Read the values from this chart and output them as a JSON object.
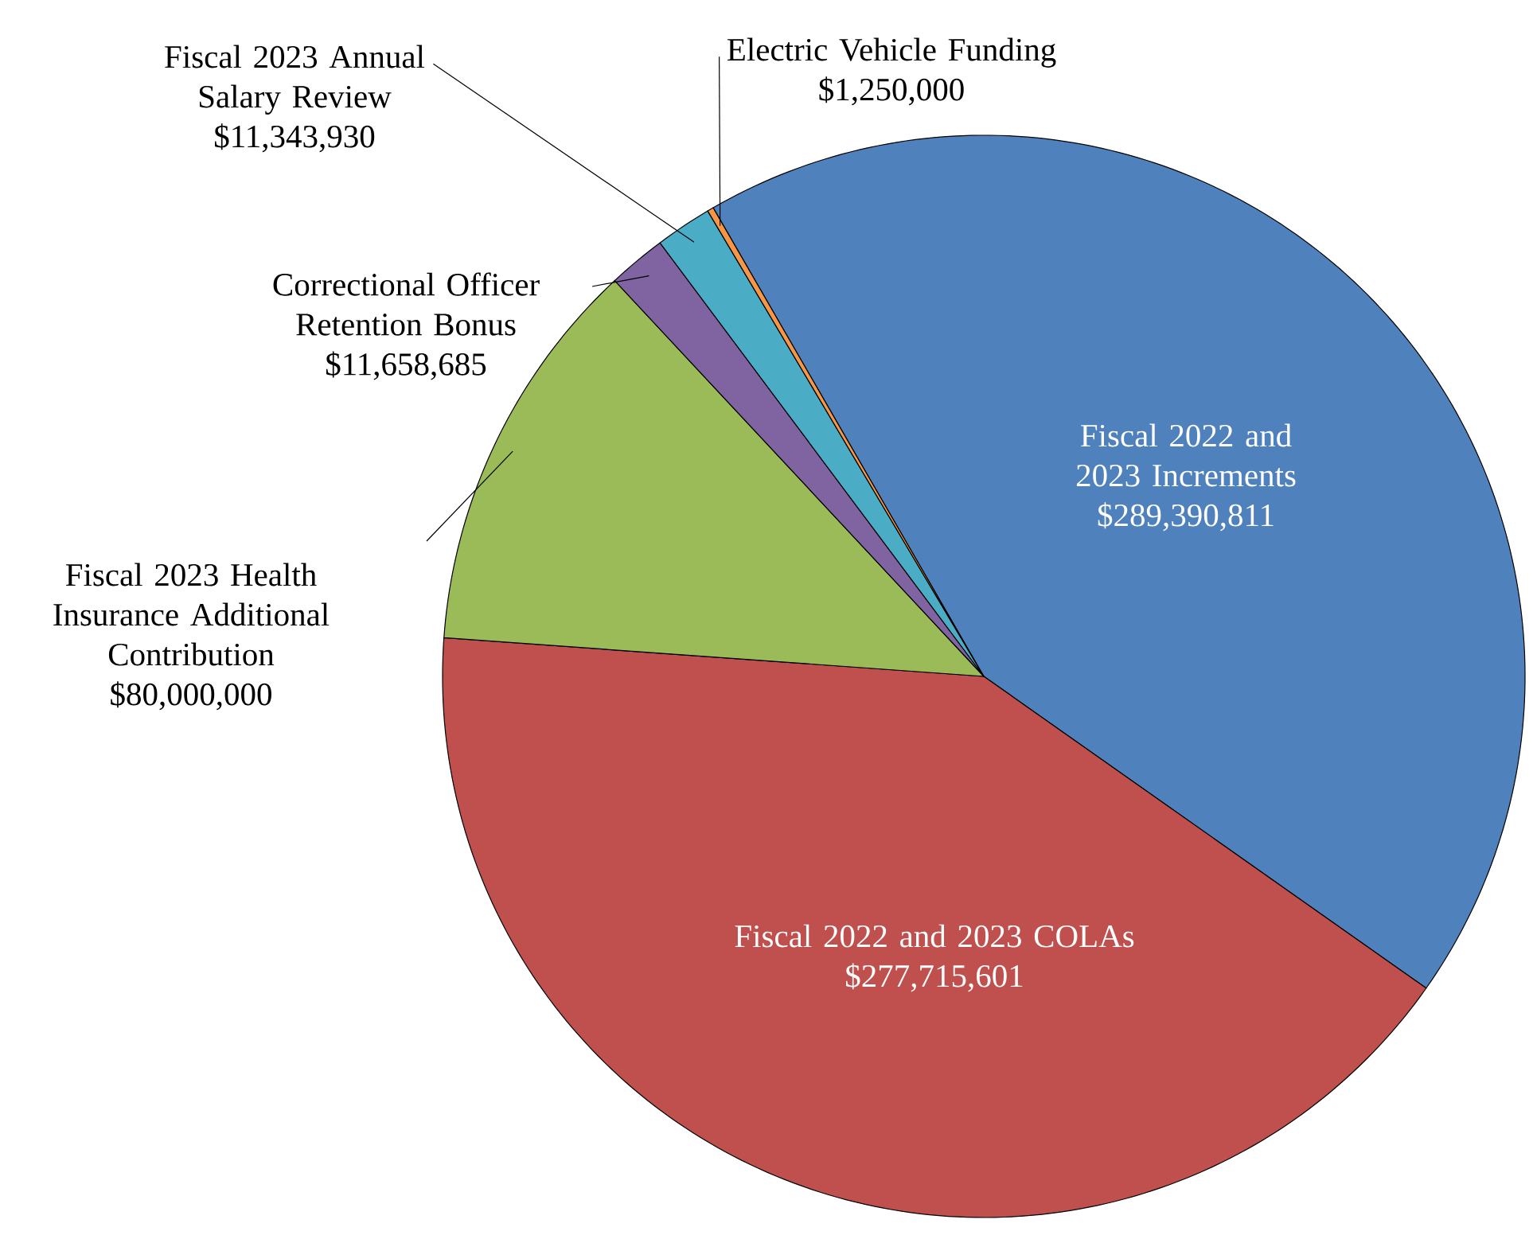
{
  "chart_data": {
    "type": "pie",
    "categories": [
      "Fiscal 2022 and 2023 Increments",
      "Fiscal 2022 and 2023 COLAs",
      "Fiscal 2023 Health Insurance Additional Contribution",
      "Correctional Officer Retention Bonus",
      "Fiscal 2023 Annual Salary Review",
      "Electric Vehicle Funding"
    ],
    "values": [
      289390811,
      277715601,
      80000000,
      11658685,
      11343930,
      1250000
    ],
    "colors": [
      "#4f81bd",
      "#c0504d",
      "#9bbb59",
      "#8064a2",
      "#4bacc6",
      "#f79646"
    ],
    "value_labels": [
      "$289,390,811",
      "$277,715,601",
      "$80,000,000",
      "$11,658,685",
      "$11,343,930",
      "$1,250,000"
    ]
  }
}
